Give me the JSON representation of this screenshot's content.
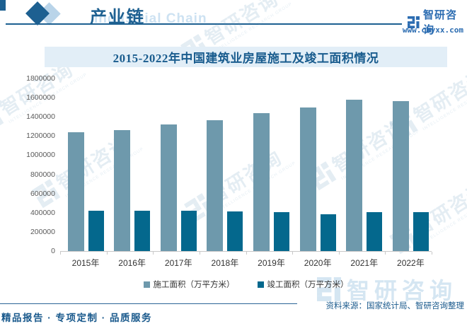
{
  "header": {
    "section_title": "产业链",
    "section_title_en": "Industrial Chain",
    "brand_name": "智研咨询",
    "brand_url": "www.chyxx.com"
  },
  "chart_data": {
    "type": "bar",
    "title": "2015-2022年中国建筑业房屋施工及竣工面积情况",
    "categories": [
      "2015年",
      "2016年",
      "2017年",
      "2018年",
      "2019年",
      "2020年",
      "2021年",
      "2022年"
    ],
    "series": [
      {
        "name": "施工面积（万平方米）",
        "color": "#6e99ac",
        "values": [
          1239700,
          1264200,
          1318900,
          1367300,
          1441600,
          1494700,
          1575500,
          1565000
        ]
      },
      {
        "name": "竣工面积（万平方米）",
        "color": "#04688d",
        "values": [
          420800,
          422400,
          419100,
          411100,
          402400,
          384800,
          408300,
          405500
        ]
      }
    ],
    "ylim": [
      0,
      1800000
    ],
    "ytick_step": 200000,
    "grid": false,
    "legend_position": "bottom"
  },
  "watermark": {
    "brand": "智研咨询",
    "subtext": "INTELLIGENCE RESEARCH GROUP"
  },
  "footer": {
    "source": "资料来源：国家统计局、智研咨询整理",
    "tagline": "精品报告 · 专项定制 · 品质服务"
  }
}
